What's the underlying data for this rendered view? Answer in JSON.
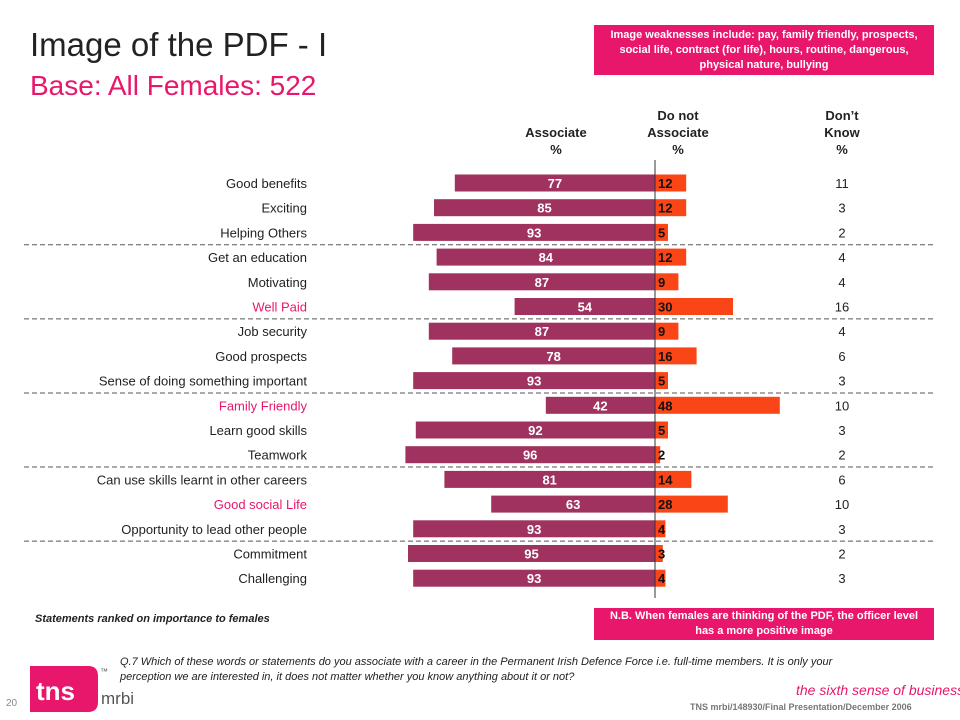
{
  "page": {
    "title": "Image of the PDF - I",
    "subtitle": "Base:  All Females:  522",
    "weakness_box": "Image weaknesses include: pay, family friendly, prospects, social life, contract (for life), hours, routine, dangerous, physical nature, bullying",
    "nb_box": "N.B. When females are thinking of the PDF, the officer level has a more positive image",
    "statement_note": "Statements ranked on importance to females",
    "question": "Q.7  Which of these words or statements do you associate with a career in the Permanent Irish Defence Force i.e. full-time members.  It is only your perception we are interested in, it does not matter whether you know anything about it or not?",
    "tagline": "the sixth sense of business™",
    "footer": "TNS mrbi/148930/Final Presentation/December 2006",
    "page_number": "20",
    "logo_text": "tns",
    "logo_sub": "mrbi",
    "logo_tm": "™",
    "col_headers": {
      "associate": "Associate\n%",
      "not_associate": "Do not\nAssociate\n%",
      "dont_know": "Don’t\nKnow\n%"
    }
  },
  "colors": {
    "associate": "#a0325f",
    "not_associate": "#fa4616",
    "highlight_text": "#e8176c",
    "normal_text": "#222222",
    "brand_pink": "#e8176c"
  },
  "chart_data": {
    "type": "bar",
    "orientation": "horizontal-diverging",
    "categories": [
      "Good benefits",
      "Exciting",
      "Helping Others",
      "Get an education",
      "Motivating",
      "Well Paid",
      "Job security",
      "Good prospects",
      "Sense of doing something important",
      "Family Friendly",
      "Learn good skills",
      "Teamwork",
      "Can use skills learnt in other careers",
      "Good social Life",
      "Opportunity to lead other people",
      "Commitment",
      "Challenging"
    ],
    "highlighted": [
      "Well Paid",
      "Family Friendly",
      "Good social Life"
    ],
    "series": [
      {
        "name": "Associate %",
        "values": [
          77,
          85,
          93,
          84,
          87,
          54,
          87,
          78,
          93,
          42,
          92,
          96,
          81,
          63,
          93,
          95,
          93
        ]
      },
      {
        "name": "Do not Associate %",
        "values": [
          12,
          12,
          5,
          12,
          9,
          30,
          9,
          16,
          5,
          48,
          5,
          2,
          14,
          28,
          4,
          3,
          4
        ]
      },
      {
        "name": "Don’t Know %",
        "values": [
          11,
          3,
          2,
          4,
          4,
          16,
          4,
          6,
          3,
          10,
          3,
          2,
          6,
          10,
          3,
          2,
          3
        ]
      }
    ],
    "group_separators_after": [
      "Helping Others",
      "Well Paid",
      "Sense of doing something important",
      "Teamwork",
      "Opportunity to lead other people"
    ]
  }
}
